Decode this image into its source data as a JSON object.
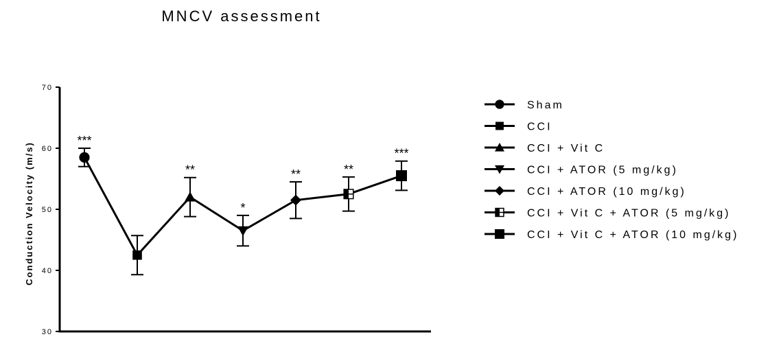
{
  "chart_data": {
    "type": "line",
    "title": "MNCV assessment",
    "xlabel": "",
    "ylabel": "Conduction Velocity (m/s)",
    "ylim": [
      30,
      70
    ],
    "yticks": [
      30,
      40,
      50,
      60,
      70
    ],
    "grid": false,
    "legend_position": "right",
    "series": [
      {
        "name": "Sham",
        "marker": "circle",
        "value": 58.5,
        "error": 1.5,
        "significance": "***"
      },
      {
        "name": "CCI",
        "marker": "square",
        "value": 42.5,
        "error": 3.2,
        "significance": ""
      },
      {
        "name": "CCI + Vit C",
        "marker": "triangle-up",
        "value": 52.0,
        "error": 3.2,
        "significance": "**"
      },
      {
        "name": "CCI + ATOR (5 mg/kg)",
        "marker": "triangle-down",
        "value": 46.5,
        "error": 2.5,
        "significance": "*"
      },
      {
        "name": "CCI + ATOR (10 mg/kg)",
        "marker": "diamond",
        "value": 51.5,
        "error": 3.0,
        "significance": "**"
      },
      {
        "name": "CCI + Vit C + ATOR (5 mg/kg)",
        "marker": "half-square",
        "value": 52.5,
        "error": 2.8,
        "significance": "**"
      },
      {
        "name": "CCI + Vit C + ATOR (10 mg/kg)",
        "marker": "square-large",
        "value": 55.5,
        "error": 2.4,
        "significance": "***"
      }
    ],
    "colors": {
      "line": "#000000",
      "background": "#ffffff"
    }
  }
}
